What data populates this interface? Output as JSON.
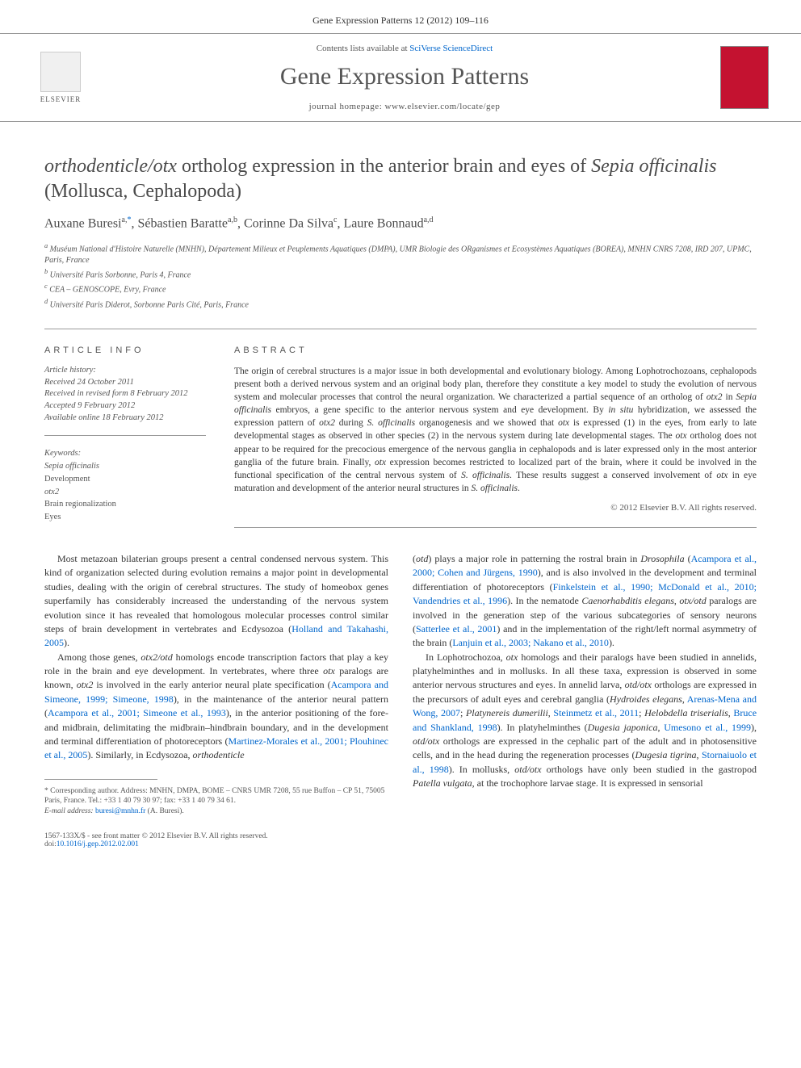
{
  "header": {
    "citation": "Gene Expression Patterns 12 (2012) 109–116"
  },
  "masthead": {
    "contents_prefix": "Contents lists available at ",
    "contents_link": "SciVerse ScienceDirect",
    "journal_name": "Gene Expression Patterns",
    "homepage_prefix": "journal homepage: ",
    "homepage_url": "www.elsevier.com/locate/gep",
    "publisher": "ELSEVIER"
  },
  "title_parts": {
    "p1": "orthodenticle/otx",
    "p2": " ortholog expression in the anterior brain and eyes of ",
    "p3": "Sepia officinalis",
    "p4": " (Mollusca, Cephalopoda)"
  },
  "authors": {
    "a1_name": "Auxane Buresi",
    "a1_sup": "a,",
    "a1_star": "*",
    "a2_name": "Sébastien Baratte",
    "a2_sup": "a,b",
    "a3_name": "Corinne Da Silva",
    "a3_sup": "c",
    "a4_name": "Laure Bonnaud",
    "a4_sup": "a,d"
  },
  "affiliations": {
    "a": "Muséum National d'Histoire Naturelle (MNHN), Département Milieux et Peuplements Aquatiques (DMPA), UMR Biologie des ORganismes et Ecosystèmes Aquatiques (BOREA), MNHN CNRS 7208, IRD 207, UPMC, Paris, France",
    "b": "Université Paris Sorbonne, Paris 4, France",
    "c": "CEA – GENOSCOPE, Evry, France",
    "d": "Université Paris Diderot, Sorbonne Paris Cité, Paris, France"
  },
  "article_info": {
    "heading": "ARTICLE INFO",
    "history_label": "Article history:",
    "received": "Received 24 October 2011",
    "revised": "Received in revised form 8 February 2012",
    "accepted": "Accepted 9 February 2012",
    "online": "Available online 18 February 2012",
    "keywords_label": "Keywords:",
    "keywords": [
      "Sepia officinalis",
      "Development",
      "otx2",
      "Brain regionalization",
      "Eyes"
    ]
  },
  "abstract": {
    "heading": "ABSTRACT",
    "text_p1": "The origin of cerebral structures is a major issue in both developmental and evolutionary biology. Among Lophotrochozoans, cephalopods present both a derived nervous system and an original body plan, therefore they constitute a key model to study the evolution of nervous system and molecular processes that control the neural organization. We characterized a partial sequence of an ortholog of ",
    "text_em1": "otx2",
    "text_p2": " in ",
    "text_em2": "Sepia officinalis",
    "text_p3": " embryos, a gene specific to the anterior nervous system and eye development. By ",
    "text_em3": "in situ",
    "text_p4": " hybridization, we assessed the expression pattern of ",
    "text_em4": "otx2",
    "text_p5": " during ",
    "text_em5": "S. officinalis",
    "text_p6": " organogenesis and we showed that ",
    "text_em6": "otx",
    "text_p7": " is expressed (1) in the eyes, from early to late developmental stages as observed in other species (2) in the nervous system during late developmental stages. The ",
    "text_em7": "otx",
    "text_p8": " ortholog does not appear to be required for the precocious emergence of the nervous ganglia in cephalopods and is later expressed only in the most anterior ganglia of the future brain. Finally, ",
    "text_em8": "otx",
    "text_p9": " expression becomes restricted to localized part of the brain, where it could be involved in the functional specification of the central nervous system of ",
    "text_em9": "S. officinalis",
    "text_p10": ". These results suggest a conserved involvement of ",
    "text_em10": "otx",
    "text_p11": " in eye maturation and development of the anterior neural structures in ",
    "text_em11": "S. officinalis",
    "text_p12": ".",
    "copyright": "© 2012 Elsevier B.V. All rights reserved."
  },
  "body": {
    "left": {
      "p1a": "Most metazoan bilaterian groups present a central condensed nervous system. This kind of organization selected during evolution remains a major point in developmental studies, dealing with the origin of cerebral structures. The study of homeobox genes superfamily has considerably increased the understanding of the nervous system evolution since it has revealed that homologous molecular processes control similar steps of brain development in vertebrates and Ecdysozoa (",
      "p1_link1": "Holland and Takahashi, 2005",
      "p1b": ").",
      "p2a": "Among those genes, ",
      "p2_em1": "otx2/otd",
      "p2b": " homologs encode transcription factors that play a key role in the brain and eye development. In vertebrates, where three ",
      "p2_em2": "otx",
      "p2c": " paralogs are known, ",
      "p2_em3": "otx2",
      "p2d": " is involved in the early anterior neural plate specification (",
      "p2_link1": "Acampora and Simeone, 1999; Simeone, 1998",
      "p2e": "), in the maintenance of the anterior neural pattern (",
      "p2_link2": "Acampora et al., 2001; Simeone et al., 1993",
      "p2f": "), in the anterior positioning of the fore- and midbrain, delimitating the midbrain–hindbrain boundary, and in the development and terminal differentiation of photoreceptors (",
      "p2_link3": "Martinez-Morales et al., 2001; Plouhinec et al., 2005",
      "p2g": "). Similarly, in Ecdysozoa, ",
      "p2_em4": "orthodenticle"
    },
    "right": {
      "p1a": "(",
      "p1_em1": "otd",
      "p1b": ") plays a major role in patterning the rostral brain in ",
      "p1_em2": "Drosophila",
      "p1c": " (",
      "p1_link1": "Acampora et al., 2000; Cohen and Jürgens, 1990",
      "p1d": "), and is also involved in the development and terminal differentiation of photoreceptors (",
      "p1_link2": "Finkelstein et al., 1990; McDonald et al., 2010; Vandendries et al., 1996",
      "p1e": "). In the nematode ",
      "p1_em3": "Caenorhabditis elegans",
      "p1f": ", ",
      "p1_em4": "otx/otd",
      "p1g": " paralogs are involved in the generation step of the various subcategories of sensory neurons (",
      "p1_link3": "Satterlee et al., 2001",
      "p1h": ") and in the implementation of the right/left normal asymmetry of the brain (",
      "p1_link4": "Lanjuin et al., 2003; Nakano et al., 2010",
      "p1i": ").",
      "p2a": "In Lophotrochozoa, ",
      "p2_em1": "otx",
      "p2b": " homologs and their paralogs have been studied in annelids, platyhelminthes and in mollusks. In all these taxa, expression is observed in some anterior nervous structures and eyes. In annelid larva, ",
      "p2_em2": "otd/otx",
      "p2c": " orthologs are expressed in the precursors of adult eyes and cerebral ganglia (",
      "p2_em3": "Hydroides elegans",
      "p2d": ", ",
      "p2_link1": "Arenas-Mena and Wong, 2007",
      "p2e": "; ",
      "p2_em4": "Platynereis dumerilii",
      "p2f": ", ",
      "p2_link2": "Steinmetz et al., 2011",
      "p2g": "; ",
      "p2_em5": "Helobdella triserialis",
      "p2h": ", ",
      "p2_link3": "Bruce and Shankland, 1998",
      "p2i": "). In platyhelminthes (",
      "p2_em6": "Dugesia japonica",
      "p2j": ", ",
      "p2_link4": "Umesono et al., 1999",
      "p2k": "), ",
      "p2_em7": "otd/otx",
      "p2l": " orthologs are expressed in the cephalic part of the adult and in photosensitive cells, and in the head during the regeneration processes (",
      "p2_em8": "Dugesia tigrina",
      "p2m": ", ",
      "p2_link5": "Stornaiuolo et al., 1998",
      "p2n": "). In mollusks, ",
      "p2_em9": "otd/otx",
      "p2o": " orthologs have only been studied in the gastropod ",
      "p2_em10": "Patella vulgata",
      "p2p": ", at the trochophore larvae stage. It is expressed in sensorial"
    }
  },
  "footnote": {
    "star": "*",
    "label": " Corresponding author. Address: MNHN, DMPA, BOME – CNRS UMR 7208, 55 rue Buffon – CP 51, 75005 Paris, France. Tel.: +33 1 40 79 30 97; fax: +33 1 40 79 34 61.",
    "email_label": "E-mail address: ",
    "email": "buresi@mnhn.fr",
    "email_suffix": " (A. Buresi)."
  },
  "footer": {
    "issn": "1567-133X/$ - see front matter © 2012 Elsevier B.V. All rights reserved.",
    "doi_label": "doi:",
    "doi": "10.1016/j.gep.2012.02.001"
  },
  "colors": {
    "link": "#0066cc",
    "text": "#333333",
    "muted": "#555555",
    "rule": "#999999",
    "brand_red": "#c41230"
  }
}
